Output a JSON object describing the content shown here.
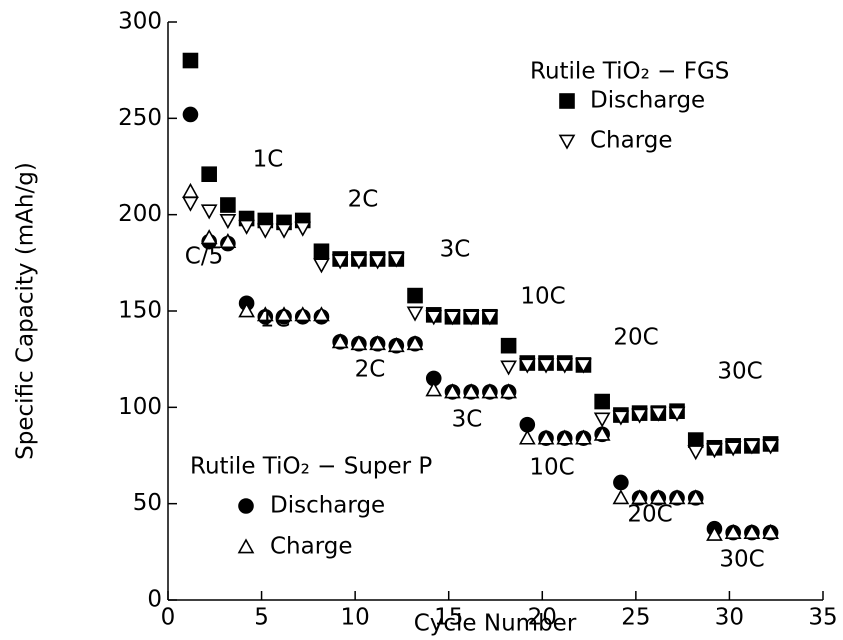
{
  "chart_data": {
    "type": "scatter",
    "x_label": "Cycle Number",
    "y_label": "Specific Capacity (mAh/g)",
    "xlim": [
      0,
      35
    ],
    "xticks": [
      0,
      5,
      10,
      15,
      20,
      25,
      30,
      35
    ],
    "ylim": [
      0,
      300
    ],
    "yticks": [
      0,
      50,
      100,
      150,
      200,
      250,
      300
    ],
    "x": [
      1.2,
      2.2,
      3.2,
      4.2,
      5.2,
      6.2,
      7.2,
      8.2,
      9.2,
      10.2,
      11.2,
      12.2,
      13.2,
      14.2,
      15.2,
      16.2,
      17.2,
      18.2,
      19.2,
      20.2,
      21.2,
      22.2,
      23.2,
      24.2,
      25.2,
      26.2,
      27.2,
      28.2,
      29.2,
      30.2,
      31.2,
      32.2
    ],
    "series_groups": [
      {
        "title": "Rutile TiO₂ − FGS",
        "series": [
          {
            "name": "Discharge",
            "color": "#000000",
            "marker": "square",
            "filled": true,
            "values": [
              280,
              221,
              205,
              198,
              197,
              196,
              197,
              181,
              177,
              177,
              177,
              177,
              158,
              148,
              147,
              147,
              147,
              132,
              123,
              123,
              123,
              122,
              103,
              96,
              97,
              97,
              98,
              83,
              79,
              80,
              80,
              81
            ]
          },
          {
            "name": "Charge",
            "color": "#000000",
            "marker": "triangle-down",
            "filled": false,
            "values": [
              206,
              202,
              197,
              194,
              192,
              192,
              193,
              174,
              176,
              176,
              176,
              177,
              149,
              147,
              147,
              147,
              147,
              121,
              122,
              122,
              122,
              122,
              94,
              95,
              96,
              97,
              97,
              77,
              78,
              79,
              80,
              80
            ]
          }
        ]
      },
      {
        "title": "Rutile TiO₂ − Super P",
        "series": [
          {
            "name": "Discharge",
            "color": "#000000",
            "marker": "circle",
            "filled": true,
            "values": [
              252,
              186,
              185,
              154,
              147,
              147,
              147,
              147,
              134,
              133,
              133,
              132,
              133,
              115,
              108,
              108,
              108,
              108,
              91,
              84,
              84,
              84,
              86,
              61,
              53,
              53,
              53,
              53,
              37,
              35,
              35,
              35
            ]
          },
          {
            "name": "Charge",
            "color": "#000000",
            "marker": "triangle-up",
            "filled": false,
            "values": [
              212,
              188,
              186,
              150,
              148,
              148,
              148,
              148,
              134,
              133,
              133,
              132,
              133,
              109,
              108,
              108,
              108,
              108,
              84,
              84,
              84,
              84,
              86,
              53,
              53,
              53,
              53,
              53,
              34,
              35,
              35,
              35
            ]
          }
        ]
      }
    ],
    "annotations": [
      "C/5",
      "1C",
      "2C",
      "3C",
      "10C",
      "20C",
      "30C",
      "1C",
      "2C",
      "3C",
      "10C",
      "20C",
      "30C"
    ]
  }
}
